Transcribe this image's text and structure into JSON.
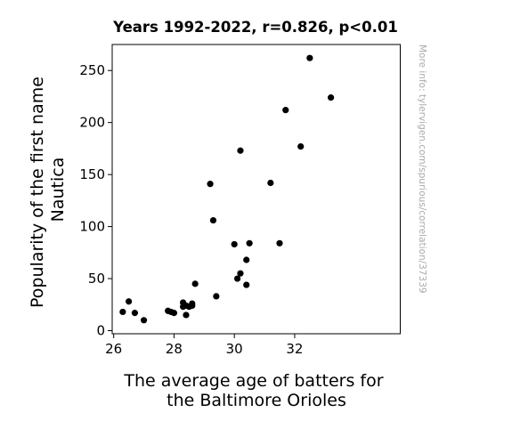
{
  "chart_data": {
    "type": "scatter",
    "title": "Years 1992-2022, r=0.826, p<0.01",
    "xlabel": [
      "The average age of batters for",
      "the Baltimore Orioles"
    ],
    "ylabel": [
      "Popularity of the first name",
      "Nautica"
    ],
    "watermark": "More info: tylervigen.com/spurious/correlation/37339",
    "xlim": [
      25.95,
      35.5
    ],
    "ylim": [
      -3,
      275
    ],
    "xticks": [
      26,
      28,
      30,
      32
    ],
    "xtick_labels": [
      "26",
      "28",
      "30",
      "32"
    ],
    "yticks": [
      0,
      50,
      100,
      150,
      200,
      250
    ],
    "ytick_labels": [
      "0",
      "50",
      "100",
      "150",
      "200",
      "250"
    ],
    "grid": false,
    "point_color": "#000000",
    "points": [
      {
        "x": 26.3,
        "y": 18
      },
      {
        "x": 26.5,
        "y": 28
      },
      {
        "x": 26.7,
        "y": 17
      },
      {
        "x": 27.0,
        "y": 10
      },
      {
        "x": 27.8,
        "y": 19
      },
      {
        "x": 27.9,
        "y": 18
      },
      {
        "x": 28.0,
        "y": 17
      },
      {
        "x": 28.3,
        "y": 27
      },
      {
        "x": 28.3,
        "y": 23
      },
      {
        "x": 28.4,
        "y": 24
      },
      {
        "x": 28.4,
        "y": 15
      },
      {
        "x": 28.5,
        "y": 23
      },
      {
        "x": 28.6,
        "y": 26
      },
      {
        "x": 28.6,
        "y": 24
      },
      {
        "x": 28.7,
        "y": 45
      },
      {
        "x": 29.2,
        "y": 141
      },
      {
        "x": 29.3,
        "y": 106
      },
      {
        "x": 29.4,
        "y": 33
      },
      {
        "x": 30.0,
        "y": 83
      },
      {
        "x": 30.1,
        "y": 50
      },
      {
        "x": 30.2,
        "y": 55
      },
      {
        "x": 30.2,
        "y": 173
      },
      {
        "x": 30.4,
        "y": 68
      },
      {
        "x": 30.4,
        "y": 44
      },
      {
        "x": 30.5,
        "y": 84
      },
      {
        "x": 31.2,
        "y": 142
      },
      {
        "x": 31.5,
        "y": 84
      },
      {
        "x": 31.7,
        "y": 212
      },
      {
        "x": 32.2,
        "y": 177
      },
      {
        "x": 32.5,
        "y": 262
      },
      {
        "x": 33.2,
        "y": 224
      }
    ]
  }
}
